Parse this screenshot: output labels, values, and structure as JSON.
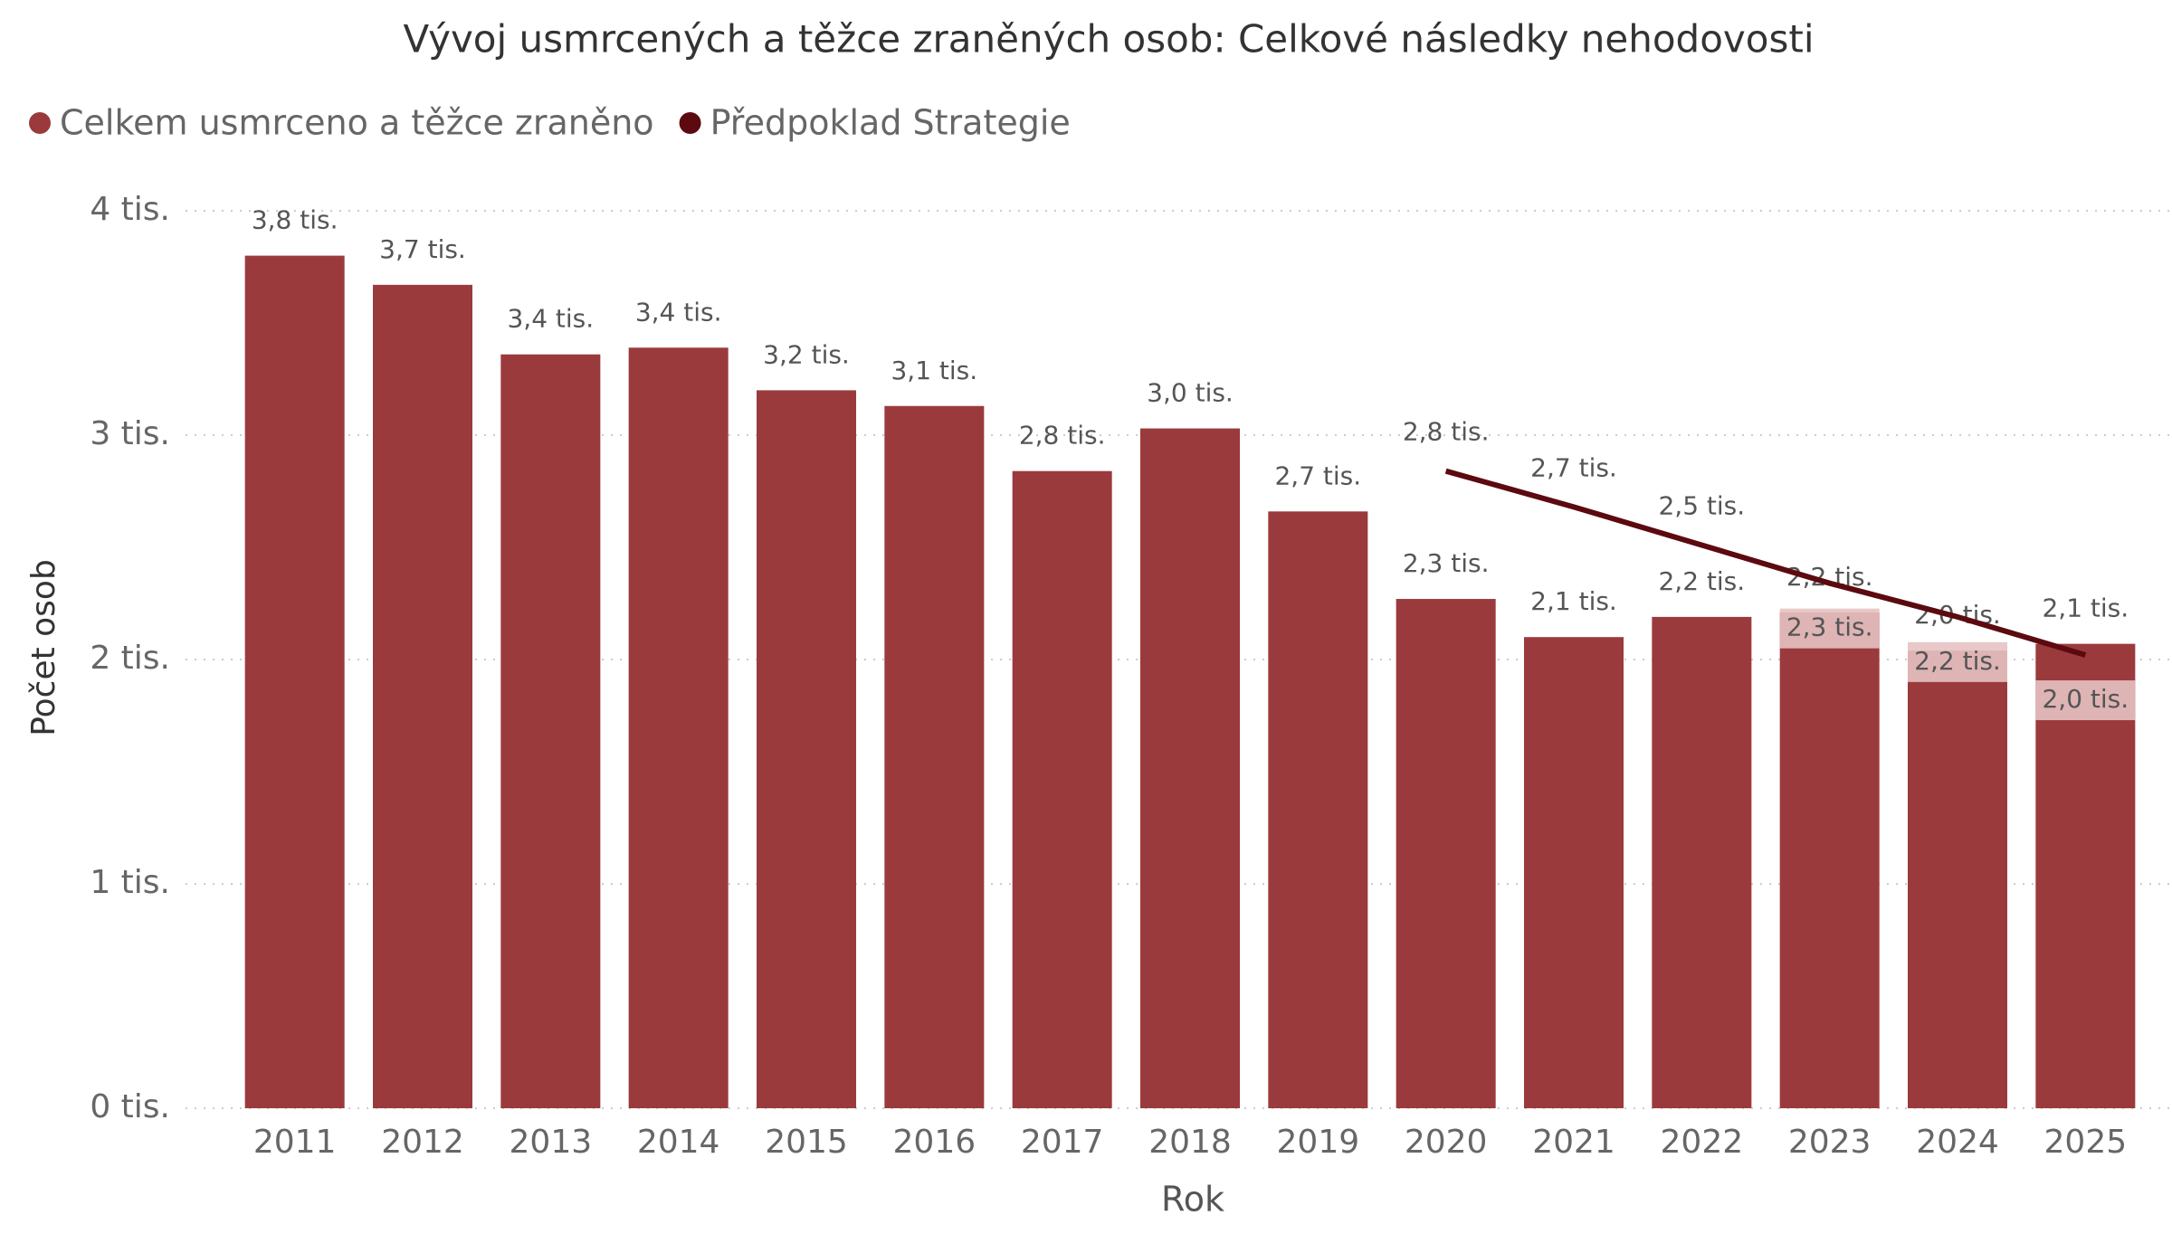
{
  "chart_data": {
    "type": "bar_line",
    "title": "Vývoj usmrcených a těžce zraněných osob: Celkové následky nehodovosti",
    "x_label": "Rok",
    "y_label": "Počet osob",
    "categories": [
      "2011",
      "2012",
      "2013",
      "2014",
      "2015",
      "2016",
      "2017",
      "2018",
      "2019",
      "2020",
      "2021",
      "2022",
      "2023",
      "2024",
      "2025"
    ],
    "series": [
      {
        "name": "Celkem usmrceno a těžce zraněno",
        "type": "bar",
        "color": "#9b3a3c",
        "values": [
          3800,
          3670,
          3360,
          3390,
          3200,
          3130,
          2840,
          3030,
          2660,
          2270,
          2100,
          2190,
          2210,
          2040,
          2070
        ],
        "value_labels": [
          "3,8 tis.",
          "3,7 tis.",
          "3,4 tis.",
          "3,4 tis.",
          "3,2 tis.",
          "3,1 tis.",
          "2,8 tis.",
          "3,0 tis.",
          "2,7 tis.",
          "2,3 tis.",
          "2,1 tis.",
          "2,2 tis.",
          "2,2 tis.",
          "2,0 tis.",
          "2,1 tis."
        ]
      },
      {
        "name": "Předpoklad Strategie",
        "type": "line",
        "color": "#5c0a0f",
        "values": [
          null,
          null,
          null,
          null,
          null,
          null,
          null,
          null,
          null,
          2840,
          2680,
          2510,
          2340,
          2190,
          2020
        ],
        "value_labels": [
          null,
          null,
          null,
          null,
          null,
          null,
          null,
          null,
          null,
          "2,8 tis.",
          "2,7 tis.",
          "2,5 tis.",
          "2,3 tis.",
          "2,2 tis.",
          "2,0 tis."
        ]
      }
    ],
    "ylim": [
      0,
      4000
    ],
    "yticks": [
      {
        "value": 0,
        "label": "0 tis."
      },
      {
        "value": 1000,
        "label": "1 tis."
      },
      {
        "value": 2000,
        "label": "2 tis."
      },
      {
        "value": 3000,
        "label": "3 tis."
      },
      {
        "value": 4000,
        "label": "4 tis."
      }
    ],
    "grid": true,
    "legend": "top-left"
  }
}
